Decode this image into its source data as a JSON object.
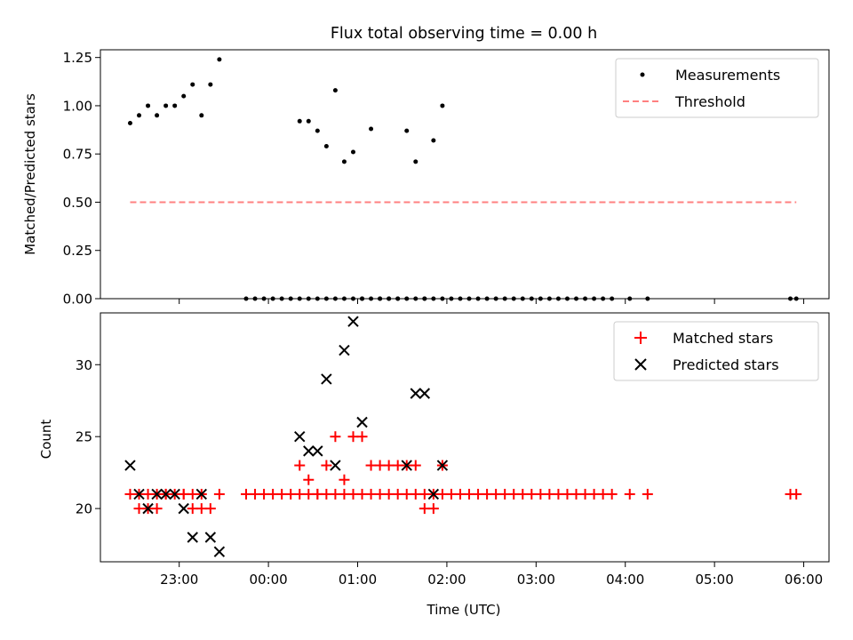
{
  "figure": {
    "title": "Flux total observing time = 0.00 h"
  },
  "chart_data": [
    {
      "type": "scatter",
      "panel": "top",
      "title": "Flux total observing time = 0.00 h",
      "xlabel": "",
      "ylabel": "Matched/Predicted stars",
      "ylim": [
        0.0,
        1.29
      ],
      "yticks": [
        0.0,
        0.25,
        0.5,
        0.75,
        1.0,
        1.25
      ],
      "ytick_labels": [
        "0.00",
        "0.25",
        "0.50",
        "0.75",
        "1.00",
        "1.25"
      ],
      "x_axis": "time",
      "legend_position": "top-right",
      "series": [
        {
          "name": "Measurements",
          "kind": "points",
          "color": "#000000",
          "x": [
            "22:27",
            "22:33",
            "22:39",
            "22:45",
            "22:51",
            "22:57",
            "23:03",
            "23:09",
            "23:15",
            "23:21",
            "23:27",
            "23:45",
            "23:51",
            "23:57",
            "00:03",
            "00:09",
            "00:15",
            "00:21",
            "00:27",
            "00:33",
            "00:39",
            "00:45",
            "00:51",
            "00:57",
            "01:03",
            "01:09",
            "01:15",
            "01:21",
            "01:27",
            "01:33",
            "01:39",
            "01:45",
            "01:51",
            "01:57",
            "02:03",
            "02:09",
            "02:15",
            "02:21",
            "02:27",
            "02:33",
            "02:39",
            "02:45",
            "02:51",
            "02:57",
            "03:03",
            "03:09",
            "03:15",
            "03:21",
            "03:27",
            "03:33",
            "03:39",
            "03:45",
            "03:51",
            "04:03",
            "04:15",
            "05:51",
            "05:55",
            "00:21",
            "00:27",
            "00:33",
            "00:39",
            "00:45",
            "00:51",
            "00:57",
            "01:03",
            "01:09",
            "01:15",
            "01:21",
            "01:27",
            "01:33",
            "01:39",
            "01:45",
            "01:51",
            "01:57"
          ],
          "y": [
            0.91,
            0.95,
            1.0,
            0.95,
            1.0,
            1.0,
            1.05,
            1.11,
            0.95,
            1.11,
            1.24,
            0.0,
            0.0,
            0.0,
            0.0,
            0.0,
            0.0,
            0.0,
            0.0,
            0.0,
            0.0,
            0.0,
            0.0,
            0.0,
            0.0,
            0.0,
            0.0,
            0.0,
            0.0,
            0.0,
            0.0,
            0.0,
            0.0,
            0.0,
            0.0,
            0.0,
            0.0,
            0.0,
            0.0,
            0.0,
            0.0,
            0.0,
            0.0,
            0.0,
            0.0,
            0.0,
            0.0,
            0.0,
            0.0,
            0.0,
            0.0,
            0.0,
            0.0,
            0.0,
            0.0,
            0.0,
            0.0,
            0.92,
            0.92,
            0.87,
            0.79,
            1.08,
            0.71,
            0.76,
            0.0,
            0.88,
            0.0,
            0.0,
            0.0,
            0.87,
            0.71,
            0.0,
            0.82,
            1.0
          ]
        },
        {
          "name": "Threshold",
          "kind": "dashed-line",
          "color": "#ff8080",
          "x": [
            "22:27",
            "05:55"
          ],
          "y": [
            0.5,
            0.5
          ]
        }
      ]
    },
    {
      "type": "scatter",
      "panel": "bottom",
      "title": "",
      "xlabel": "Time (UTC)",
      "ylabel": "Count",
      "ylim": [
        16.3,
        33.6
      ],
      "yticks": [
        20,
        25,
        30
      ],
      "ytick_labels": [
        "20",
        "25",
        "30"
      ],
      "xlim": [
        "22:07",
        "06:17"
      ],
      "xticks": [
        "23:00",
        "00:00",
        "01:00",
        "02:00",
        "03:00",
        "04:00",
        "05:00",
        "06:00"
      ],
      "xtick_labels": [
        "23:00",
        "00:00",
        "01:00",
        "02:00",
        "03:00",
        "04:00",
        "05:00",
        "06:00"
      ],
      "legend_position": "top-right",
      "series": [
        {
          "name": "Matched stars",
          "marker": "+",
          "color": "#ff0000",
          "x": [
            "22:27",
            "22:33",
            "22:39",
            "22:45",
            "22:51",
            "22:57",
            "23:03",
            "23:09",
            "23:15",
            "23:21",
            "23:27",
            "23:45",
            "23:51",
            "23:57",
            "00:03",
            "00:09",
            "00:15",
            "00:21",
            "00:27",
            "00:33",
            "00:39",
            "00:45",
            "00:51",
            "00:57",
            "01:03",
            "01:09",
            "01:15",
            "01:21",
            "01:27",
            "01:33",
            "01:39",
            "01:45",
            "01:51",
            "01:57",
            "02:03",
            "02:09",
            "02:15",
            "02:21",
            "02:27",
            "02:33",
            "02:39",
            "02:45",
            "02:51",
            "02:57",
            "03:03",
            "03:09",
            "03:15",
            "03:21",
            "03:27",
            "03:33",
            "03:39",
            "03:45",
            "03:51",
            "04:03",
            "04:15",
            "05:51",
            "05:55",
            "22:33",
            "22:39",
            "22:45",
            "22:51",
            "23:03",
            "23:09",
            "23:15",
            "00:21",
            "00:27",
            "00:33",
            "00:39",
            "00:45",
            "00:51",
            "00:57",
            "01:03",
            "01:09",
            "01:15",
            "01:21",
            "01:27",
            "01:33",
            "01:39",
            "01:45",
            "01:51",
            "01:57"
          ],
          "y": [
            21,
            20,
            20,
            20,
            21,
            21,
            21,
            20,
            20,
            20,
            21,
            21,
            21,
            21,
            21,
            21,
            21,
            21,
            21,
            21,
            21,
            21,
            21,
            21,
            21,
            21,
            21,
            21,
            21,
            21,
            21,
            21,
            21,
            21,
            21,
            21,
            21,
            21,
            21,
            21,
            21,
            21,
            21,
            21,
            21,
            21,
            21,
            21,
            21,
            21,
            21,
            21,
            21,
            21,
            21,
            21,
            21,
            21,
            21,
            21,
            21,
            21,
            21,
            21,
            23,
            22,
            21,
            23,
            25,
            22,
            25,
            25,
            23,
            23,
            23,
            23,
            23,
            23,
            20,
            20,
            23
          ]
        },
        {
          "name": "Predicted stars",
          "marker": "x",
          "color": "#000000",
          "x": [
            "22:27",
            "22:33",
            "22:39",
            "22:45",
            "22:51",
            "22:57",
            "23:03",
            "23:09",
            "23:15",
            "23:21",
            "23:27",
            "00:21",
            "00:27",
            "00:33",
            "00:39",
            "00:45",
            "00:51",
            "00:57",
            "01:03",
            "01:33",
            "01:39",
            "01:45",
            "01:51",
            "01:57"
          ],
          "y": [
            23,
            21,
            20,
            21,
            21,
            21,
            20,
            18,
            21,
            18,
            17,
            25,
            24,
            24,
            29,
            23,
            31,
            33,
            26,
            23,
            28,
            28,
            21,
            23
          ]
        }
      ]
    }
  ]
}
